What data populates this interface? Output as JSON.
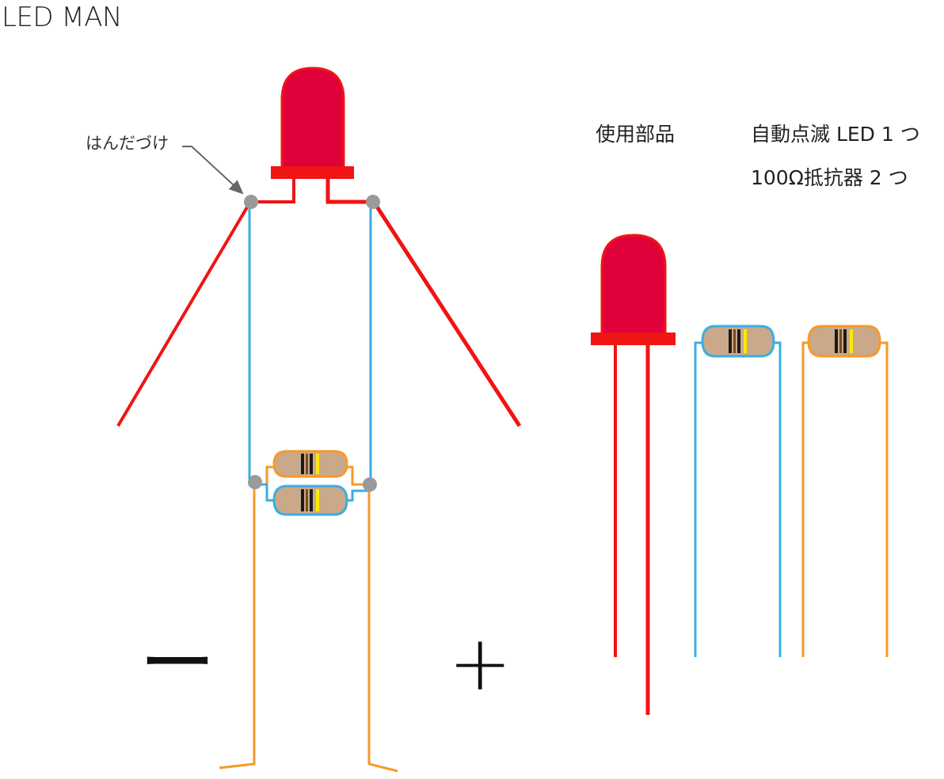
{
  "title": "LED MAN",
  "labels": {
    "solder": "はんだづけ",
    "parts_heading": "使用部品",
    "parts": [
      "自動点滅 LED 1 つ",
      "100Ω抵抗器  2 つ"
    ],
    "minus": "ー",
    "plus": "+"
  },
  "colors": {
    "led_body": "#e0003a",
    "led_wire": "#f01414",
    "resistor_blue": "#3aaee0",
    "resistor_orange": "#f59a2b",
    "resistor_body": "#c9a98a",
    "solder_point": "#9a9a9a",
    "band_dark": "#1a1a1a",
    "band_brown": "#7a4a1e",
    "band_yellow": "#ffe800"
  }
}
